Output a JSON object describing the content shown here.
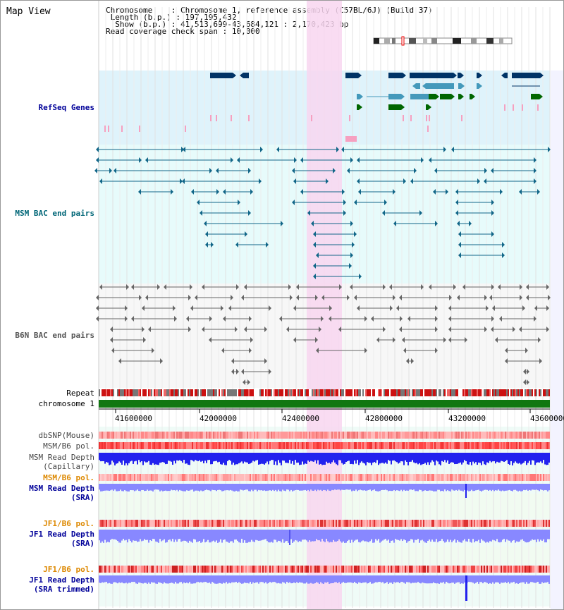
{
  "view": {
    "title": "Map View",
    "info": {
      "chromosome_label": "Chromosome",
      "chromosome_value": "Chromosome 1, reference assembly (C57BL/6J) (Build 37)",
      "length_label": "Length (b.p.)",
      "length_value": "197,195,432",
      "show_label": "Show (b.p.)",
      "show_value": "41,513,699-43,684,121 : 2,170,423 bp",
      "coverage_label": "Read coverage check span",
      "coverage_value": "10,000"
    }
  },
  "tracks": {
    "refseq": "RefSeq Genes",
    "msm_bac": "MSM BAC end pairs",
    "b6n_bac": "B6N BAC end pairs",
    "repeat": "Repeat",
    "chromosome": "chromosome 1",
    "dbsnp": "dbSNP(Mouse)",
    "msm_b6_pol_1": "MSM/B6 pol.",
    "msm_read_depth_cap_1": "MSM Read Depth",
    "msm_read_depth_cap_2": "(Capillary)",
    "msm_b6_pol_2": "MSM/B6 pol.",
    "msm_read_depth_sra_1": "MSM Read Depth",
    "msm_read_depth_sra_2": "(SRA)",
    "jf1_b6_pol_1": "JF1/B6 pol.",
    "jf1_read_depth_sra_1": "JF1 Read Depth",
    "jf1_read_depth_sra_2": "(SRA)",
    "jf1_b6_pol_2": "JF1/B6 pol.",
    "jf1_read_depth_trim_1": "JF1 Read Depth",
    "jf1_read_depth_trim_2": "(SRA trimmed)"
  },
  "axis": {
    "ticks": [
      "41600000",
      "42000000",
      "42400000",
      "42800000",
      "43200000",
      "43600000"
    ]
  },
  "colors": {
    "refseq_bg": "#dff3fb",
    "msm_bg": "#e7fbfb",
    "b6n_bg": "#f7f7f7",
    "highlight": "#f8d6f0",
    "gene_dark": "#003366",
    "gene_mid": "#4499bb",
    "gene_green": "#006600",
    "msm_line": "#116688",
    "b6n_line": "#666666",
    "chrom": "#117711",
    "depth_blue": "#2222ee",
    "depth_light": "#8888ff",
    "label_blue": "#000099",
    "label_teal": "#006677",
    "label_orange": "#dd8800"
  }
}
